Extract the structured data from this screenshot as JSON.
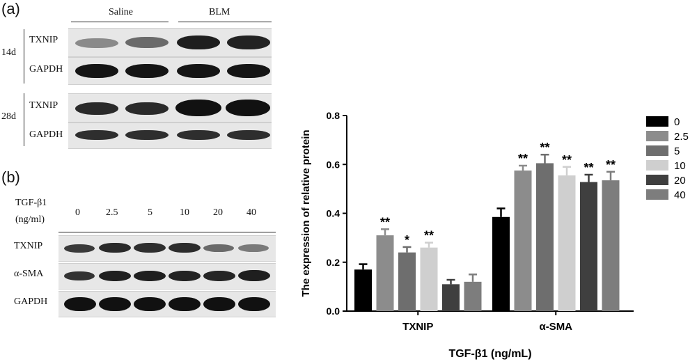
{
  "panel_a": {
    "label": "(a)",
    "groups": [
      "Saline",
      "BLM"
    ],
    "blocks": [
      {
        "time": "14d",
        "rows": [
          "TXNIP",
          "GAPDH"
        ]
      },
      {
        "time": "28d",
        "rows": [
          "TXNIP",
          "GAPDH"
        ]
      }
    ]
  },
  "panel_b": {
    "label": "(b)",
    "header_line1": "TGF-β1",
    "header_line2": "(ng/ml)",
    "doses": [
      "0",
      "2.5",
      "5",
      "10",
      "20",
      "40"
    ],
    "rows": [
      "TXNIP",
      "α-SMA",
      "GAPDH"
    ]
  },
  "colors": {
    "series": [
      "#000000",
      "#8c8c8c",
      "#6e6e6e",
      "#cfcfcf",
      "#3f3f3f",
      "#7d7d7d"
    ]
  },
  "chart_data": {
    "type": "bar",
    "xlabel": "TGF-β1 (ng/mL)",
    "ylabel": "The expression of relative protein",
    "categories": [
      "TXNIP",
      "α-SMA"
    ],
    "ylim": [
      0,
      0.8
    ],
    "yticks": [
      "0.0",
      "0.2",
      "0.4",
      "0.6",
      "0.8"
    ],
    "legend_position": "right",
    "series": [
      {
        "name": "0",
        "values": [
          0.17,
          0.385
        ],
        "errors": [
          0.022,
          0.035
        ],
        "sig": [
          "",
          ""
        ]
      },
      {
        "name": "2.5",
        "values": [
          0.31,
          0.575
        ],
        "errors": [
          0.025,
          0.02
        ],
        "sig": [
          "**",
          "**"
        ]
      },
      {
        "name": "5",
        "values": [
          0.24,
          0.605
        ],
        "errors": [
          0.022,
          0.035
        ],
        "sig": [
          "*",
          "**"
        ]
      },
      {
        "name": "10",
        "values": [
          0.26,
          0.555
        ],
        "errors": [
          0.02,
          0.035
        ],
        "sig": [
          "**",
          "**"
        ]
      },
      {
        "name": "20",
        "values": [
          0.11,
          0.528
        ],
        "errors": [
          0.018,
          0.03
        ],
        "sig": [
          "",
          "**"
        ]
      },
      {
        "name": "40",
        "values": [
          0.12,
          0.535
        ],
        "errors": [
          0.03,
          0.035
        ],
        "sig": [
          "",
          "**"
        ]
      }
    ]
  }
}
